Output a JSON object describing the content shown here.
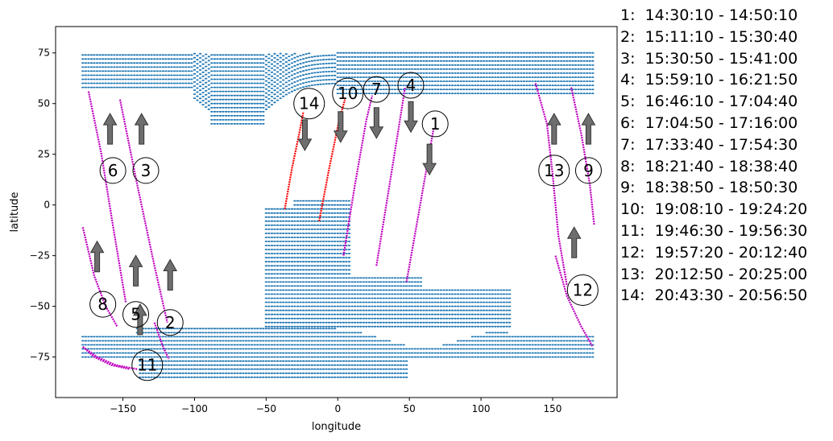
{
  "chart_data": {
    "type": "scatter",
    "xlabel": "longitude",
    "ylabel": "latitude",
    "xlim": [
      -197,
      195
    ],
    "ylim": [
      -95,
      88
    ],
    "xticks": [
      -150,
      -100,
      -50,
      0,
      50,
      100,
      150
    ],
    "yticks": [
      -75,
      -50,
      -25,
      0,
      25,
      50,
      75
    ],
    "grid": false,
    "colors": {
      "grid_points": "#1f77b4",
      "track": "#bf00bf",
      "track_highlight": "#ff0000",
      "arrow": "#6e6e6e"
    },
    "tracks": [
      {
        "id": "1",
        "color": "#bf00bf",
        "points": [
          [
            48,
            -38
          ],
          [
            55,
            -10
          ],
          [
            62,
            18
          ],
          [
            67,
            38
          ]
        ]
      },
      {
        "id": "2",
        "color": "#bf00bf",
        "points": [
          [
            -152,
            52
          ],
          [
            -140,
            10
          ],
          [
            -128,
            -30
          ],
          [
            -119,
            -58
          ]
        ]
      },
      {
        "id": "3",
        "color": "#bf00bf",
        "points": [
          [
            -128,
            -58
          ],
          [
            -122,
            -70
          ],
          [
            -118,
            -76
          ]
        ]
      },
      {
        "id": "4",
        "color": "#bf00bf",
        "points": [
          [
            27,
            -30
          ],
          [
            35,
            5
          ],
          [
            43,
            40
          ],
          [
            47,
            58
          ]
        ]
      },
      {
        "id": "5",
        "color": "#bf00bf",
        "points": [
          [
            -178,
            -11
          ],
          [
            -170,
            -35
          ],
          [
            -162,
            -50
          ],
          [
            -154,
            -60
          ]
        ]
      },
      {
        "id": "6",
        "color": "#bf00bf",
        "points": [
          [
            -174,
            56
          ],
          [
            -165,
            25
          ],
          [
            -157,
            -10
          ],
          [
            -148,
            -48
          ]
        ]
      },
      {
        "id": "7",
        "color": "#bf00bf",
        "points": [
          [
            4,
            -25
          ],
          [
            12,
            10
          ],
          [
            20,
            42
          ],
          [
            24,
            54
          ]
        ]
      },
      {
        "id": "8",
        "color": "#bf00bf",
        "points": [
          [
            -178,
            -70
          ],
          [
            -170,
            -75
          ],
          [
            -158,
            -79
          ],
          [
            -145,
            -81
          ]
        ]
      },
      {
        "id": "9",
        "color": "#bf00bf",
        "points": [
          [
            163,
            58
          ],
          [
            170,
            35
          ],
          [
            176,
            10
          ],
          [
            179,
            -10
          ]
        ]
      },
      {
        "id": "10",
        "color": "#ff0000",
        "points": [
          [
            -13,
            -8
          ],
          [
            -6,
            18
          ],
          [
            1,
            42
          ],
          [
            5,
            52
          ]
        ]
      },
      {
        "id": "11",
        "color": "#bf00bf",
        "points": [
          [
            -178,
            -70
          ],
          [
            -168,
            -75
          ],
          [
            -155,
            -79
          ],
          [
            -140,
            -81
          ]
        ]
      },
      {
        "id": "12",
        "color": "#bf00bf",
        "points": [
          [
            152,
            -25
          ],
          [
            160,
            -45
          ],
          [
            170,
            -60
          ],
          [
            178,
            -70
          ]
        ]
      },
      {
        "id": "13",
        "color": "#bf00bf",
        "points": [
          [
            138,
            60
          ],
          [
            146,
            40
          ],
          [
            150,
            15
          ],
          [
            154,
            -15
          ],
          [
            160,
            -40
          ]
        ]
      },
      {
        "id": "14",
        "color": "#ff0000",
        "points": [
          [
            -37,
            -2
          ],
          [
            -32,
            18
          ],
          [
            -27,
            35
          ],
          [
            -24,
            46
          ]
        ]
      }
    ],
    "annotations": [
      {
        "label": "1",
        "x": 68,
        "y": 40,
        "arrow": "down",
        "ax": 64,
        "ay": 30
      },
      {
        "label": "2",
        "x": -117,
        "y": -58,
        "arrow": "up",
        "ax": -117,
        "ay": -42
      },
      {
        "label": "3",
        "x": -134,
        "y": 17,
        "arrow": "up",
        "ax": -137,
        "ay": 30
      },
      {
        "label": "4",
        "x": 51,
        "y": 59,
        "arrow": "down",
        "ax": 51,
        "ay": 51
      },
      {
        "label": "5",
        "x": -141,
        "y": -54,
        "arrow": "up",
        "ax": -141,
        "ay": -40
      },
      {
        "label": "6",
        "x": -157,
        "y": 17,
        "arrow": "up",
        "ax": -159,
        "ay": 30
      },
      {
        "label": "7",
        "x": 27,
        "y": 57,
        "arrow": "down",
        "ax": 27,
        "ay": 48
      },
      {
        "label": "8",
        "x": -164,
        "y": -49,
        "arrow": "up",
        "ax": -168,
        "ay": -33
      },
      {
        "label": "9",
        "x": 175,
        "y": 17,
        "arrow": "up",
        "ax": 175,
        "ay": 30
      },
      {
        "label": "10",
        "x": 7,
        "y": 55,
        "arrow": "down",
        "ax": 2,
        "ay": 46
      },
      {
        "label": "11",
        "x": -133,
        "y": -79,
        "arrow": "up",
        "ax": -138,
        "ay": -64
      },
      {
        "label": "12",
        "x": 171,
        "y": -42,
        "arrow": "up",
        "ax": 165,
        "ay": -26
      },
      {
        "label": "13",
        "x": 151,
        "y": 17,
        "arrow": "up",
        "ax": 151,
        "ay": 30
      },
      {
        "label": "14",
        "x": -20,
        "y": 50,
        "arrow": "down",
        "ax": -23,
        "ay": 42
      }
    ],
    "grid_regions": [
      {
        "name": "north",
        "lon": [
          -178,
          178
        ],
        "lat_bottom_west": 60,
        "lat_bottom_east": 55,
        "lat_top": 75
      },
      {
        "name": "south",
        "lon": [
          -178,
          178
        ],
        "lat_top": -60,
        "lat_bottom": -85
      },
      {
        "name": "middle",
        "lon": [
          -50,
          120
        ],
        "lat_top": 0,
        "lat_bottom": -60
      }
    ],
    "legend_title": "",
    "legend": [
      "1:  14:30:10 - 14:50:10",
      "2:  15:11:10 - 15:30:40",
      "3:  15:30:50 - 15:41:00",
      "4:  15:59:10 - 16:21:50",
      "5:  16:46:10 - 17:04:40",
      "6:  17:04:50 - 17:16:00",
      "7:  17:33:40 - 17:54:30",
      "8:  18:21:40 - 18:38:40",
      "9:  18:38:50 - 18:50:30",
      "10:  19:08:10 - 19:24:20",
      "11:  19:46:30 - 19:56:30",
      "12:  19:57:20 - 20:12:40",
      "13:  20:12:50 - 20:25:00",
      "14:  20:43:30 - 20:56:50"
    ]
  }
}
